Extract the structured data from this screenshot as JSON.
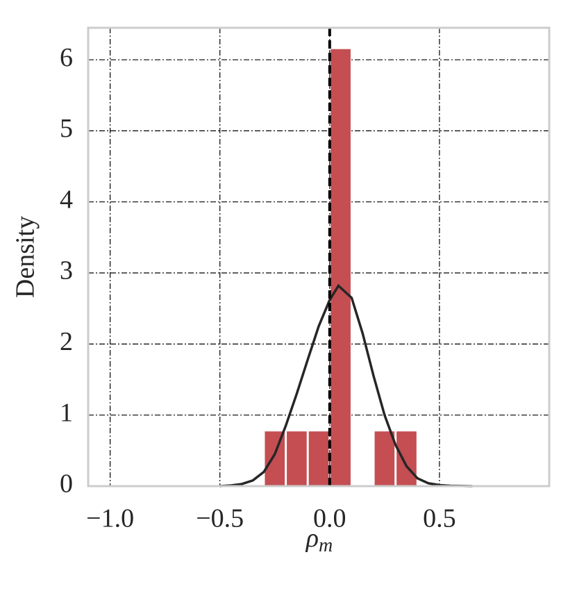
{
  "chart_data": {
    "type": "histogram",
    "xlabel": {
      "symbol": "ρ",
      "subscript": "m"
    },
    "ylabel": "Density",
    "bins": [
      -0.3,
      -0.2,
      -0.1,
      0.0,
      0.1,
      0.2,
      0.3,
      0.4
    ],
    "values": [
      0.77,
      0.77,
      0.77,
      6.15,
      0,
      0.77,
      0.77
    ],
    "color": "#c44e52",
    "kde": {
      "color": "#262626",
      "x": [
        -0.5,
        -0.45,
        -0.4,
        -0.35,
        -0.3,
        -0.25,
        -0.2,
        -0.15,
        -0.1,
        -0.05,
        0.0,
        0.04,
        0.1,
        0.15,
        0.2,
        0.25,
        0.3,
        0.35,
        0.4,
        0.45,
        0.5,
        0.55,
        0.6,
        0.65
      ],
      "values": [
        0.0,
        0.01,
        0.03,
        0.08,
        0.2,
        0.45,
        0.85,
        1.3,
        1.78,
        2.25,
        2.62,
        2.82,
        2.65,
        2.15,
        1.55,
        1.0,
        0.58,
        0.28,
        0.11,
        0.04,
        0.015,
        0.005,
        0.002,
        0.0
      ]
    },
    "vline": {
      "x": 0.0,
      "color": "#000000"
    },
    "xlim": [
      -1.1,
      1.0
    ],
    "ylim": [
      0,
      6.45
    ],
    "xticks": [
      {
        "value": -1.0,
        "label": "−1.0"
      },
      {
        "value": -0.5,
        "label": "−0.5"
      },
      {
        "value": 0.0,
        "label": "0.0"
      },
      {
        "value": 0.5,
        "label": "0.5"
      }
    ],
    "yticks": [
      0,
      1,
      2,
      3,
      4,
      5,
      6
    ],
    "grid": true
  }
}
